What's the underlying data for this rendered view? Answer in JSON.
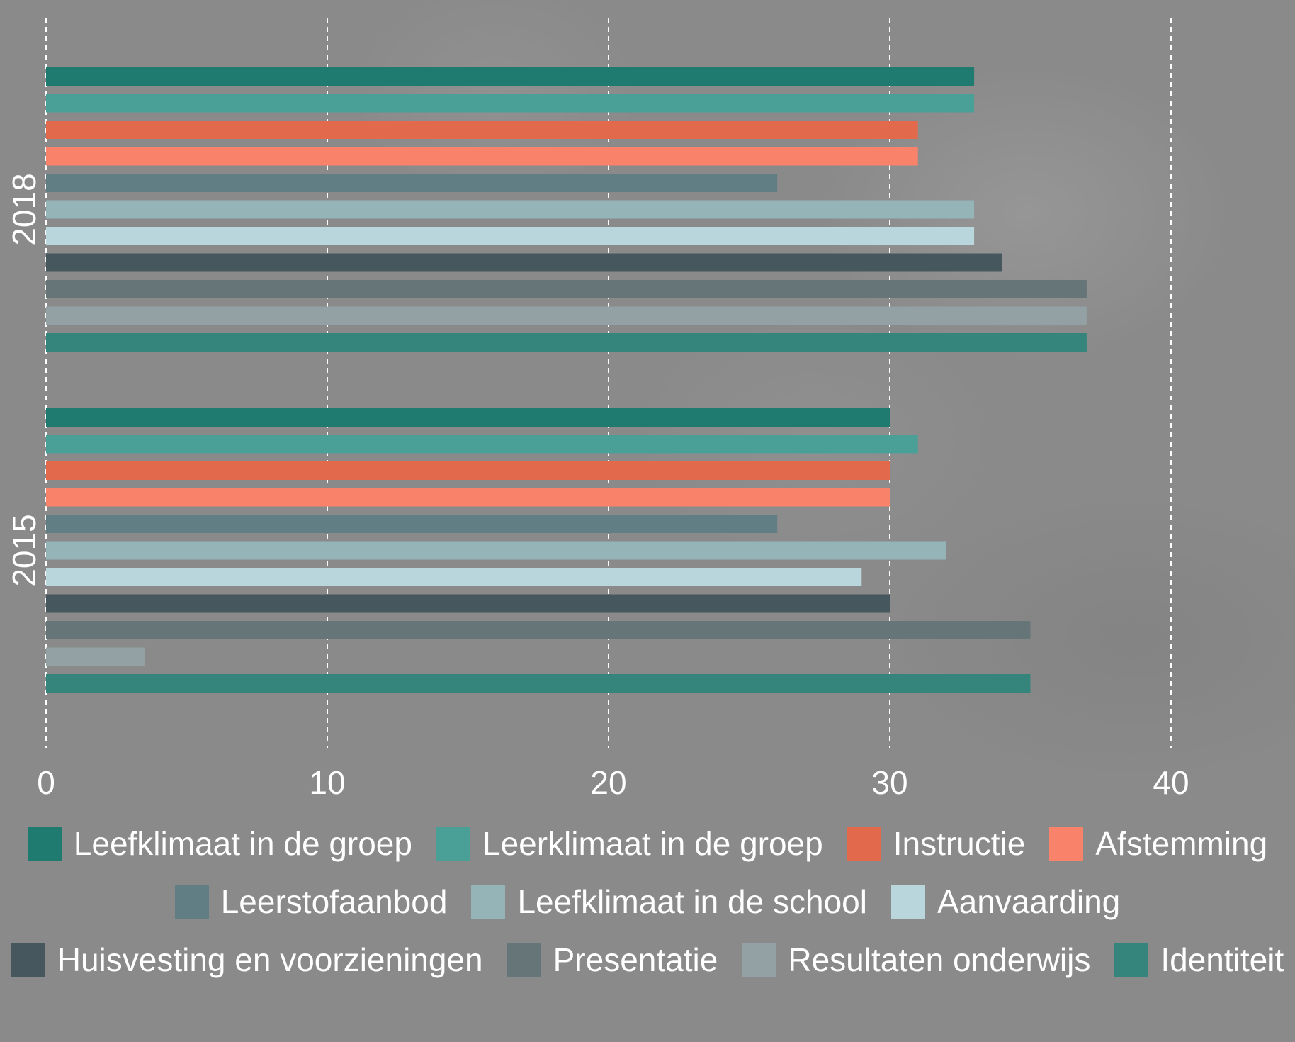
{
  "chart_data": {
    "type": "bar",
    "orientation": "horizontal",
    "categories": [
      "2018",
      "2015"
    ],
    "xlim": [
      0,
      44
    ],
    "x_ticks": [
      "0",
      "10",
      "20",
      "30",
      "40"
    ],
    "grid": "vertical dashed",
    "legend_position": "bottom",
    "series": [
      {
        "name": "Leefklimaat in de groep",
        "color": "#1f7b70",
        "values": [
          33,
          30
        ]
      },
      {
        "name": "Leerklimaat in de groep",
        "color": "#4aa097",
        "values": [
          33,
          31
        ]
      },
      {
        "name": "Instructie",
        "color": "#e3694c",
        "values": [
          31,
          30
        ]
      },
      {
        "name": "Afstemming",
        "color": "#f9836a",
        "values": [
          31,
          30
        ]
      },
      {
        "name": "Leerstofaanbod",
        "color": "#617e84",
        "values": [
          26,
          26
        ]
      },
      {
        "name": "Leefklimaat in de school",
        "color": "#94b4b8",
        "values": [
          33,
          32
        ]
      },
      {
        "name": "Aanvaarding",
        "color": "#b8d6dc",
        "values": [
          33,
          29
        ]
      },
      {
        "name": "Huisvesting en voorzieningen",
        "color": "#47575e",
        "values": [
          34,
          30
        ]
      },
      {
        "name": "Presentatie",
        "color": "#667578",
        "values": [
          37,
          35
        ]
      },
      {
        "name": "Resultaten onderwijs",
        "color": "#93a1a4",
        "values": [
          37,
          3.5
        ]
      },
      {
        "name": "Identiteit",
        "color": "#35857c",
        "values": [
          37,
          35
        ]
      }
    ]
  }
}
